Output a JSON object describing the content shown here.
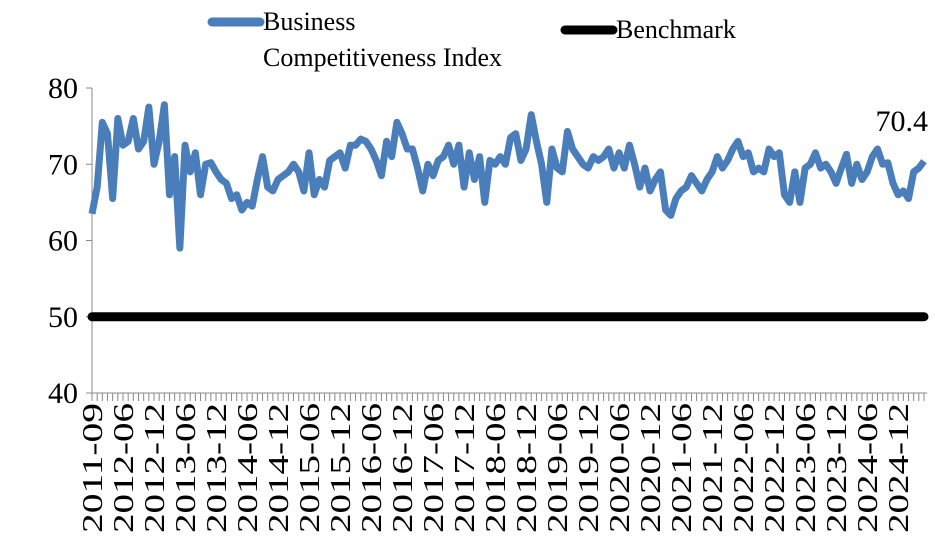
{
  "chart_data": {
    "type": "line",
    "categories": [
      "2011-09",
      null,
      null,
      null,
      null,
      null,
      "2012-06",
      null,
      null,
      null,
      null,
      null,
      "2012-12",
      null,
      null,
      null,
      null,
      null,
      "2013-06",
      null,
      null,
      null,
      null,
      null,
      "2013-12",
      null,
      null,
      null,
      null,
      null,
      "2014-06",
      null,
      null,
      null,
      null,
      null,
      "2014-12",
      null,
      null,
      null,
      null,
      null,
      "2015-06",
      null,
      null,
      null,
      null,
      null,
      "2015-12",
      null,
      null,
      null,
      null,
      null,
      "2016-06",
      null,
      null,
      null,
      null,
      null,
      "2016-12",
      null,
      null,
      null,
      null,
      null,
      "2017-06",
      null,
      null,
      null,
      null,
      null,
      "2017-12",
      null,
      null,
      null,
      null,
      null,
      "2018-06",
      null,
      null,
      null,
      null,
      null,
      "2018-12",
      null,
      null,
      null,
      null,
      null,
      "2019-06",
      null,
      null,
      null,
      null,
      null,
      "2019-12",
      null,
      null,
      null,
      null,
      null,
      "2020-06",
      null,
      null,
      null,
      null,
      null,
      "2020-12",
      null,
      null,
      null,
      null,
      null,
      "2021-06",
      null,
      null,
      null,
      null,
      null,
      "2021-12",
      null,
      null,
      null,
      null,
      null,
      "2022-06",
      null,
      null,
      null,
      null,
      null,
      "2022-12",
      null,
      null,
      null,
      null,
      null,
      "2023-06",
      null,
      null,
      null,
      null,
      null,
      "2023-12",
      null,
      null,
      null,
      null,
      null,
      "2024-06",
      null,
      null,
      null,
      null,
      null,
      "2024-12",
      null,
      null,
      null,
      null,
      null
    ],
    "series": [
      {
        "name": "Business Competitiveness Index",
        "color": "#4a7ebb",
        "values": [
          63.5,
          67,
          75.5,
          74,
          65.5,
          76,
          72.5,
          73,
          76,
          72,
          73,
          77.5,
          70,
          73,
          77.8,
          66,
          71,
          59,
          72.5,
          69,
          71.5,
          66,
          70,
          70.2,
          69,
          68,
          67.5,
          65.5,
          66,
          64,
          65,
          64.5,
          68,
          71,
          67,
          66.5,
          68,
          68.5,
          69,
          70,
          69,
          66.5,
          71.5,
          66,
          68,
          67,
          70.5,
          71,
          71.5,
          69.5,
          72.5,
          72.5,
          73.3,
          73,
          72,
          70.5,
          68.5,
          73,
          71,
          75.5,
          74,
          72,
          72,
          69.5,
          66.5,
          70,
          68.5,
          70.5,
          71,
          72.5,
          70,
          72.5,
          67,
          71.5,
          68,
          71,
          65,
          70.5,
          70,
          71,
          70,
          73.5,
          74,
          70.5,
          72,
          76.5,
          73,
          70,
          65,
          72,
          69.5,
          69,
          74.3,
          72,
          71,
          70,
          69.5,
          71,
          70.5,
          71,
          72,
          69.5,
          71.5,
          69.5,
          72.5,
          70,
          67,
          69.5,
          66.5,
          68,
          69,
          64,
          63.3,
          65.5,
          66.5,
          67,
          68.5,
          67.5,
          66.5,
          68,
          69,
          71,
          69.5,
          70.5,
          72,
          73,
          71,
          71.5,
          69,
          69.5,
          69,
          72,
          71,
          71.5,
          66,
          65,
          69,
          65,
          69.5,
          70,
          71.5,
          69.5,
          70,
          69,
          67.5,
          69.5,
          71.3,
          67.5,
          70,
          68,
          69,
          71,
          72,
          70,
          70.2,
          67.5,
          66,
          66.5,
          65.5,
          69,
          69.5,
          70.4
        ]
      },
      {
        "name": "Benchmark",
        "color": "#000000",
        "values": [
          50,
          50,
          50,
          50,
          50,
          50,
          50,
          50,
          50,
          50,
          50,
          50,
          50,
          50,
          50,
          50,
          50,
          50,
          50,
          50,
          50,
          50,
          50,
          50,
          50,
          50,
          50,
          50,
          50,
          50,
          50,
          50,
          50,
          50,
          50,
          50,
          50,
          50,
          50,
          50,
          50,
          50,
          50,
          50,
          50,
          50,
          50,
          50,
          50,
          50,
          50,
          50,
          50,
          50,
          50,
          50,
          50,
          50,
          50,
          50,
          50,
          50,
          50,
          50,
          50,
          50,
          50,
          50,
          50,
          50,
          50,
          50,
          50,
          50,
          50,
          50,
          50,
          50,
          50,
          50,
          50,
          50,
          50,
          50,
          50,
          50,
          50,
          50,
          50,
          50,
          50,
          50,
          50,
          50,
          50,
          50,
          50,
          50,
          50,
          50,
          50,
          50,
          50,
          50,
          50,
          50,
          50,
          50,
          50,
          50,
          50,
          50,
          50,
          50,
          50,
          50,
          50,
          50,
          50,
          50,
          50,
          50,
          50,
          50,
          50,
          50,
          50,
          50,
          50,
          50,
          50,
          50,
          50,
          50,
          50,
          50,
          50,
          50,
          50,
          50,
          50,
          50,
          50,
          50,
          50,
          50,
          50,
          50,
          50,
          50,
          50,
          50,
          50,
          50,
          50,
          50,
          50,
          50,
          50,
          50,
          50,
          50
        ]
      }
    ],
    "ylim": [
      40,
      80
    ],
    "yticks": [
      40,
      50,
      60,
      70,
      80
    ],
    "grid": false
  }
}
